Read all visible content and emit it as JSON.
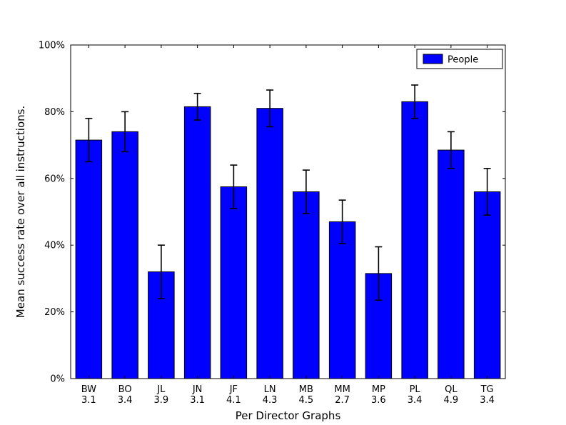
{
  "chart_data": {
    "type": "bar",
    "title": "",
    "xlabel": "Per Director Graphs",
    "ylabel": "Mean success rate over all instructions.",
    "categories": [
      "BW",
      "BO",
      "JL",
      "JN",
      "JF",
      "LN",
      "MB",
      "MM",
      "MP",
      "PL",
      "QL",
      "TG"
    ],
    "category_sublabels": [
      "3.1",
      "3.4",
      "3.9",
      "3.1",
      "4.1",
      "4.3",
      "4.5",
      "2.7",
      "3.6",
      "3.4",
      "4.9",
      "3.4"
    ],
    "series": [
      {
        "name": "People",
        "values": [
          71.5,
          74.0,
          32.0,
          81.5,
          57.5,
          81.0,
          56.0,
          47.0,
          31.5,
          83.0,
          68.5,
          56.0
        ],
        "errors": [
          6.5,
          6.0,
          8.0,
          4.0,
          6.5,
          5.5,
          6.5,
          6.5,
          8.0,
          5.0,
          5.5,
          7.0
        ]
      }
    ],
    "ylim": [
      0,
      100
    ],
    "yticks": [
      0,
      20,
      40,
      60,
      80,
      100
    ],
    "ytick_labels": [
      "0%",
      "20%",
      "40%",
      "60%",
      "80%",
      "100%"
    ],
    "legend": {
      "position": "upper right",
      "entries": [
        {
          "label": "People",
          "color": "#0000ff"
        }
      ]
    },
    "bar_color": "#0000ff",
    "bar_edge_color": "#000000",
    "error_color": "#000000",
    "axis_color": "#000000",
    "grid": false
  }
}
